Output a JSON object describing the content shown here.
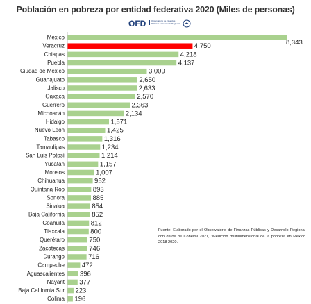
{
  "title": "Población  en pobreza por entidad federativa 2020 (Miles de personas)",
  "logo": {
    "text": "OFD",
    "subtitle": "Observatorio de Finanzas Públicas y Desarrollo Regional"
  },
  "source_note": "Fuente: Elaborado por el Observatorio de Finanzas Públicas y Desarrollo Regional con datos de Coneval 2021, \"Medición multidimensional de la pobreza en México 2018  2020.",
  "colors": {
    "bar_default": "#a9d18e",
    "bar_highlight": "#ff0000",
    "axis": "#bfbfbf",
    "label": "#222222"
  },
  "chart_data": {
    "type": "bar",
    "orientation": "horizontal",
    "title": "Población  en pobreza por entidad federativa 2020 (Miles de personas)",
    "categories": [
      "México",
      "Veracruz",
      "Chiapas",
      "Puebla",
      "Ciudad de México",
      "Guanajuato",
      "Jalisco",
      "Oaxaca",
      "Guerrero",
      "Michoacán",
      "Hidalgo",
      "Nuevo León",
      "Tabasco",
      "Tamaulipas",
      "San Luis Potosí",
      "Yucatán",
      "Morelos",
      "Chihuahua",
      "Quintana Roo",
      "Sonora",
      "Sinaloa",
      "Baja California",
      "Coahuila",
      "Tlaxcala",
      "Querétaro",
      "Zacatecas",
      "Durango",
      "Campeche",
      "Aguascalientes",
      "Nayarit",
      "Baja California Sur",
      "Colima"
    ],
    "values": [
      8343,
      4750,
      4218,
      4137,
      3009,
      2650,
      2633,
      2570,
      2363,
      2134,
      1571,
      1425,
      1316,
      1234,
      1214,
      1157,
      1007,
      952,
      893,
      885,
      854,
      852,
      812,
      800,
      750,
      746,
      716,
      472,
      396,
      377,
      223,
      196
    ],
    "value_labels": [
      "8,343",
      "4,750",
      "4,218",
      "4,137",
      "3,009",
      "2,650",
      "2,633",
      "2,570",
      "2,363",
      "2,134",
      "1,571",
      "1,425",
      "1,316",
      "1,234",
      "1,214",
      "1,157",
      "1,007",
      "952",
      "893",
      "885",
      "854",
      "852",
      "812",
      "800",
      "750",
      "746",
      "716",
      "472",
      "396",
      "377",
      "223",
      "196"
    ],
    "highlight": "Veracruz",
    "xlim": [
      0,
      8343
    ],
    "grid": false,
    "legend": "none"
  }
}
